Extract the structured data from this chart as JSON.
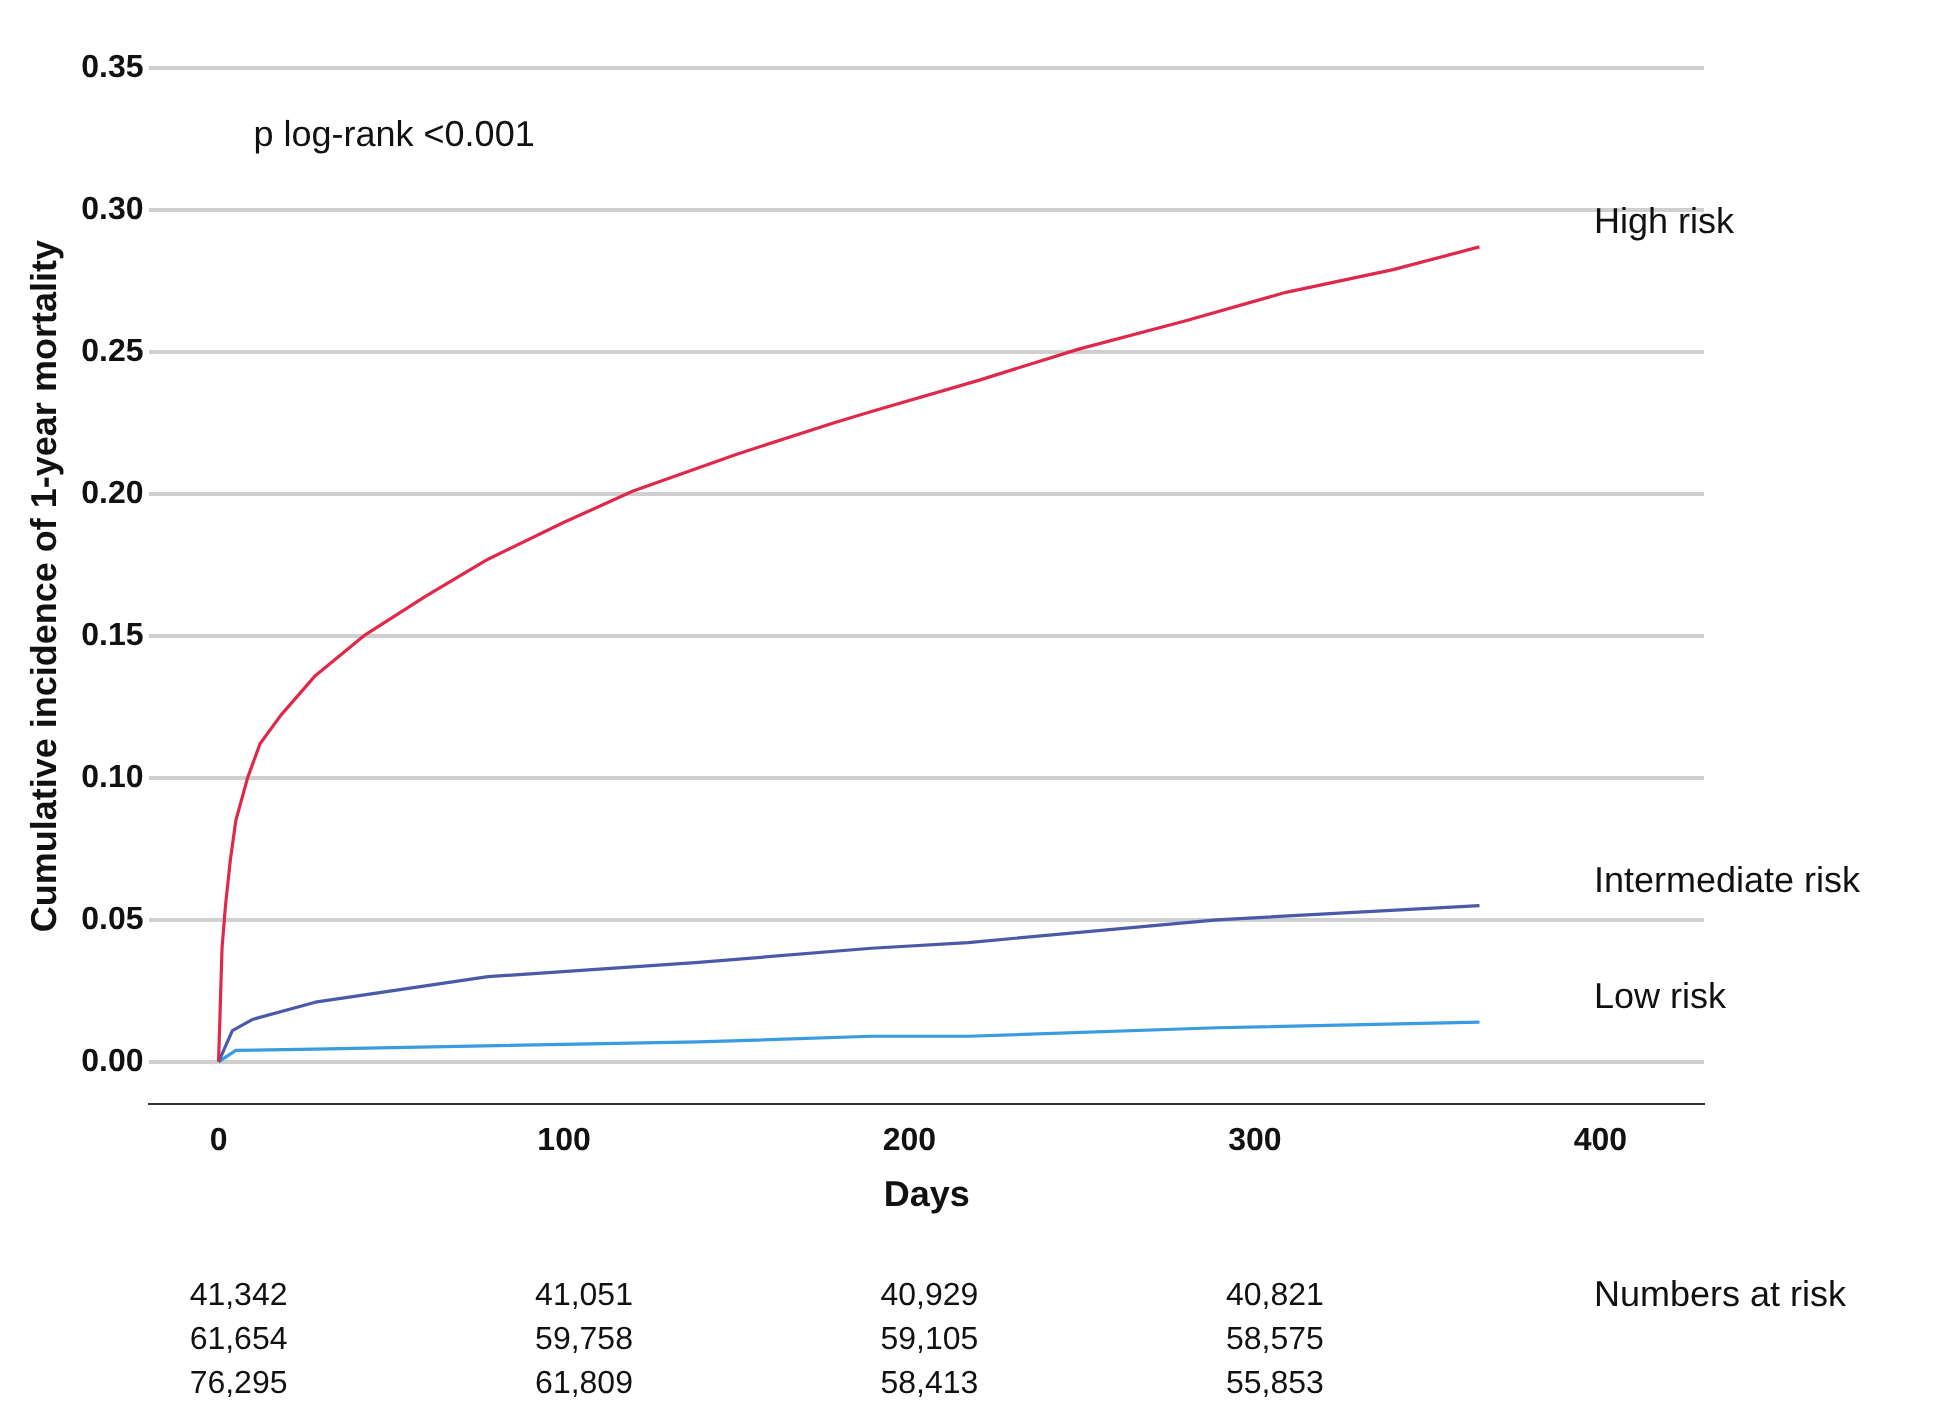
{
  "chart_data": {
    "type": "line",
    "xlabel": "Days",
    "ylabel": "Cumulative incidence of 1-year mortality",
    "xlim": [
      -20,
      430
    ],
    "xticks": [
      0,
      100,
      200,
      300,
      400
    ],
    "ylim": [
      -0.015,
      0.35
    ],
    "yticks": [
      {
        "value": 0,
        "label": "0.00"
      },
      {
        "value": 0.05,
        "label": "0.05"
      },
      {
        "value": 0.1,
        "label": "0.10"
      },
      {
        "value": 0.15,
        "label": "0.15"
      },
      {
        "value": 0.2,
        "label": "0.20"
      },
      {
        "value": 0.25,
        "label": "0.25"
      },
      {
        "value": 0.3,
        "label": "0.30"
      },
      {
        "value": 0.35,
        "label": "0.35"
      }
    ],
    "grid": "y",
    "legend": false,
    "line_style": "solid",
    "series": [
      {
        "name": "High risk",
        "color": "#e0284a",
        "x": [
          0,
          0.5,
          1,
          2,
          3.4,
          5,
          8.4,
          12,
          18,
          28,
          42,
          60,
          78,
          100,
          120,
          150,
          178,
          189,
          220,
          249,
          280,
          309,
          340,
          365
        ],
        "values": [
          0,
          0.02,
          0.04,
          0.055,
          0.071,
          0.085,
          0.1,
          0.112,
          0.122,
          0.136,
          0.15,
          0.164,
          0.177,
          0.19,
          0.201,
          0.214,
          0.225,
          0.229,
          0.24,
          0.251,
          0.261,
          0.271,
          0.279,
          0.287
        ]
      },
      {
        "name": "Intermediate risk",
        "color": "#4a5aa8",
        "x": [
          0,
          4,
          10,
          28,
          78,
          139,
          189,
          217,
          289,
          365
        ],
        "values": [
          0,
          0.011,
          0.015,
          0.021,
          0.03,
          0.035,
          0.04,
          0.042,
          0.05,
          0.055
        ]
      },
      {
        "name": "Low risk",
        "color": "#3a9be0",
        "x": [
          0,
          5,
          28,
          139,
          189,
          217,
          289,
          365
        ],
        "values": [
          0,
          0.004,
          0.0045,
          0.007,
          0.009,
          0.009,
          0.012,
          0.014
        ]
      }
    ],
    "annotations": [
      "p log-rank <0.001",
      "Numbers at risk",
      "41,342",
      "41,051",
      "40,929",
      "40,821",
      "61,654",
      "59,758",
      "59,105",
      "58,575",
      "76,295",
      "61,809",
      "58,413",
      "55,853"
    ]
  }
}
